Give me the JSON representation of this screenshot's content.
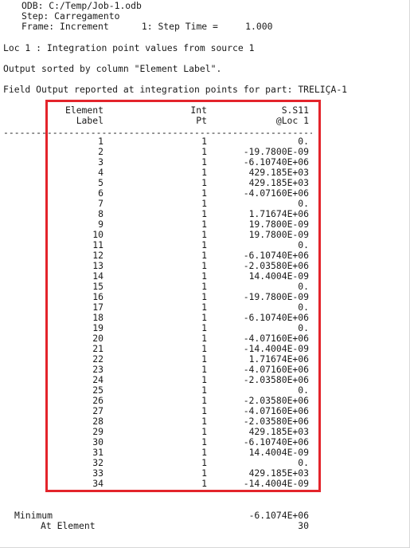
{
  "header": {
    "odb": "ODB: C:/Temp/Job-1.odb",
    "step": "Step: Carregamento",
    "frame": "Frame: Increment      1: Step Time =     1.000"
  },
  "info": {
    "loc": "Loc 1 : Integration point values from source 1",
    "sorted": "Output sorted by column \"Element Label\".",
    "field": "Field Output reported at integration points for part: TRELIÇA-1"
  },
  "table": {
    "col_element": [
      "Element",
      "Label"
    ],
    "col_int": [
      "Int",
      "Pt"
    ],
    "col_value": [
      "S.S11",
      "@Loc 1"
    ],
    "separator": "---------------------------------------------------------------------",
    "rows": [
      {
        "label": "1",
        "pt": "1",
        "value": "0."
      },
      {
        "label": "2",
        "pt": "1",
        "value": "-19.7800E-09"
      },
      {
        "label": "3",
        "pt": "1",
        "value": "-6.10740E+06"
      },
      {
        "label": "4",
        "pt": "1",
        "value": "429.185E+03"
      },
      {
        "label": "5",
        "pt": "1",
        "value": "429.185E+03"
      },
      {
        "label": "6",
        "pt": "1",
        "value": "-4.07160E+06"
      },
      {
        "label": "7",
        "pt": "1",
        "value": "0."
      },
      {
        "label": "8",
        "pt": "1",
        "value": "1.71674E+06"
      },
      {
        "label": "9",
        "pt": "1",
        "value": "19.7800E-09"
      },
      {
        "label": "10",
        "pt": "1",
        "value": "19.7800E-09"
      },
      {
        "label": "11",
        "pt": "1",
        "value": "0."
      },
      {
        "label": "12",
        "pt": "1",
        "value": "-6.10740E+06"
      },
      {
        "label": "13",
        "pt": "1",
        "value": "-2.03580E+06"
      },
      {
        "label": "14",
        "pt": "1",
        "value": "14.4004E-09"
      },
      {
        "label": "15",
        "pt": "1",
        "value": "0."
      },
      {
        "label": "16",
        "pt": "1",
        "value": "-19.7800E-09"
      },
      {
        "label": "17",
        "pt": "1",
        "value": "0."
      },
      {
        "label": "18",
        "pt": "1",
        "value": "-6.10740E+06"
      },
      {
        "label": "19",
        "pt": "1",
        "value": "0."
      },
      {
        "label": "20",
        "pt": "1",
        "value": "-4.07160E+06"
      },
      {
        "label": "21",
        "pt": "1",
        "value": "-14.4004E-09"
      },
      {
        "label": "22",
        "pt": "1",
        "value": "1.71674E+06"
      },
      {
        "label": "23",
        "pt": "1",
        "value": "-4.07160E+06"
      },
      {
        "label": "24",
        "pt": "1",
        "value": "-2.03580E+06"
      },
      {
        "label": "25",
        "pt": "1",
        "value": "0."
      },
      {
        "label": "26",
        "pt": "1",
        "value": "-2.03580E+06"
      },
      {
        "label": "27",
        "pt": "1",
        "value": "-4.07160E+06"
      },
      {
        "label": "28",
        "pt": "1",
        "value": "-2.03580E+06"
      },
      {
        "label": "29",
        "pt": "1",
        "value": "429.185E+03"
      },
      {
        "label": "30",
        "pt": "1",
        "value": "-6.10740E+06"
      },
      {
        "label": "31",
        "pt": "1",
        "value": "14.4004E-09"
      },
      {
        "label": "32",
        "pt": "1",
        "value": "0."
      },
      {
        "label": "33",
        "pt": "1",
        "value": "429.185E+03"
      },
      {
        "label": "34",
        "pt": "1",
        "value": "-14.4004E-09"
      }
    ]
  },
  "summary": {
    "min_label": "Minimum",
    "min_value": "-6.1074E+06",
    "at_label": "At Element",
    "at_value": "30"
  },
  "colors": {
    "highlight": "#e3242b",
    "text": "#1a1a1a"
  }
}
